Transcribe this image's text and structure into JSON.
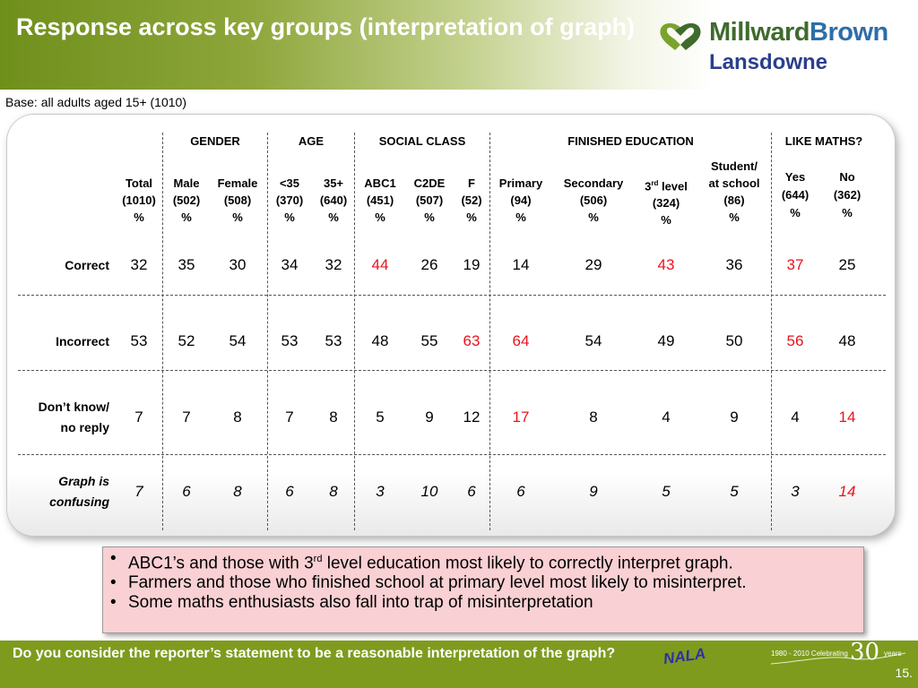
{
  "header": {
    "title": "Response across key groups (interpretation of graph)",
    "logo_name_a": "Millward",
    "logo_name_b": "Brown",
    "logo_sub": "Lansdowne"
  },
  "base_text": "Base: all adults aged 15+ (1010)",
  "groups": [
    "GENDER",
    "AGE",
    "SOCIAL CLASS",
    "FINISHED EDUCATION",
    "LIKE MATHS?"
  ],
  "columns": [
    {
      "l1": "Total",
      "l2": "(1010)",
      "l3": "%"
    },
    {
      "l1": "Male",
      "l2": "(502)",
      "l3": "%"
    },
    {
      "l1": "Female",
      "l2": "(508)",
      "l3": "%"
    },
    {
      "l1": "<35",
      "l2": "(370)",
      "l3": "%"
    },
    {
      "l1": "35+",
      "l2": "(640)",
      "l3": "%"
    },
    {
      "l1": "ABC1",
      "l2": "(451)",
      "l3": "%"
    },
    {
      "l1": "C2DE",
      "l2": "(507)",
      "l3": "%"
    },
    {
      "l1": "F",
      "l2": "(52)",
      "l3": "%"
    },
    {
      "l1": "Primary",
      "l2": "(94)",
      "l3": "%"
    },
    {
      "l1": "Secondary",
      "l2": "(506)",
      "l3": "%"
    },
    {
      "l1a": "3",
      "l1sup": "rd",
      "l1b": " level",
      "l2": "(324)",
      "l3": "%"
    },
    {
      "l0": "Student/",
      "l1": "at school",
      "l2": "(86)",
      "l3": "%"
    },
    {
      "l1": "Yes",
      "l2": "(644)",
      "l3": "%"
    },
    {
      "l1": "No",
      "l2": "(362)",
      "l3": "%"
    }
  ],
  "rows": [
    {
      "label1": "Correct",
      "label2": "",
      "values": [
        "32",
        "35",
        "30",
        "34",
        "32",
        "44",
        "26",
        "19",
        "14",
        "29",
        "43",
        "36",
        "37",
        "25"
      ]
    },
    {
      "label1": "Incorrect",
      "label2": "",
      "values": [
        "53",
        "52",
        "54",
        "53",
        "53",
        "48",
        "55",
        "63",
        "64",
        "54",
        "49",
        "50",
        "56",
        "48"
      ]
    },
    {
      "label1": "Don’t know/",
      "label2": "no reply",
      "values": [
        "7",
        "7",
        "8",
        "7",
        "8",
        "5",
        "9",
        "12",
        "17",
        "8",
        "4",
        "9",
        "4",
        "14"
      ]
    },
    {
      "label1": "Graph is",
      "label2": "confusing",
      "values": [
        "7",
        "6",
        "8",
        "6",
        "8",
        "3",
        "10",
        "6",
        "6",
        "9",
        "5",
        "5",
        "3",
        "14"
      ]
    }
  ],
  "callout": {
    "b1_pre": "ABC1’s and those with 3",
    "b1_sup": "rd",
    "b1_post": " level education most likely to correctly interpret graph.",
    "b2": "Farmers and those who finished school at primary level most likely to misinterpret.",
    "b3": "Some maths enthusiasts also fall into trap of misinterpretation",
    "bullet": "•"
  },
  "footer": {
    "question": "Do you consider the reporter’s statement to be a reasonable interpretation of the graph?",
    "nala": "NALA",
    "celebrate_text": "1980 - 2010 Celebrating",
    "celebrate_num": "30",
    "celebrate_years": "years",
    "page_number": "15."
  }
}
